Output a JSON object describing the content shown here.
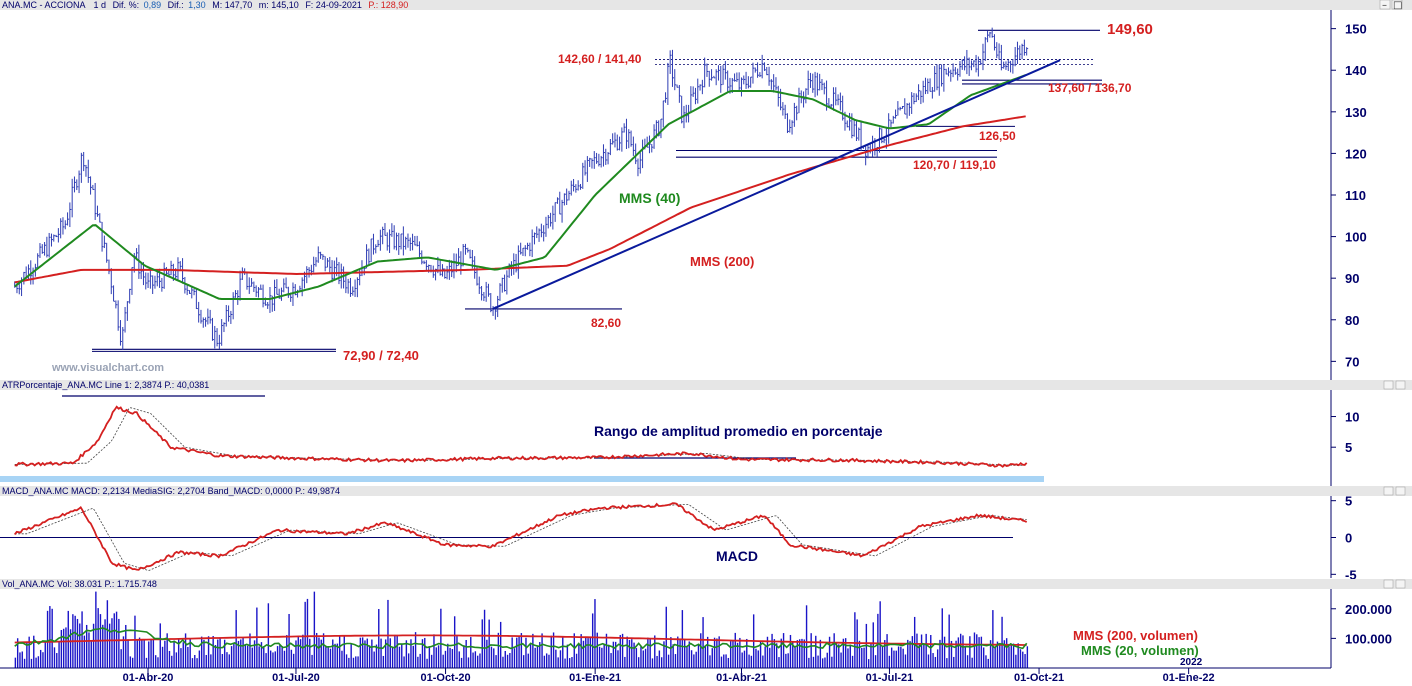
{
  "header": {
    "ticker": "ANA.MC - ACCIONA",
    "period": "1 d",
    "dif_pct_label": "Dif. %:",
    "dif_pct": "0,89",
    "dif_label": "Dif.:",
    "dif": "1,30",
    "max": "M: 147,70",
    "min": "m: 145,10",
    "date": "F: 24-09-2021",
    "price": "P.: 128,90"
  },
  "panels": {
    "atr_header": "ATRPorcentaje_ANA.MC  Line 1: 2,3874  P.: 40,0381",
    "macd_header": "MACD_ANA.MC  MACD: 2,2134  MediaSIG: 2,2704  Band_MACD: 0,0000  P.: 49,9874",
    "vol_header": "Vol_ANA.MC  Vol: 38.031  P.: 1.715.748"
  },
  "annotations": {
    "level_149": "149,60",
    "level_142": "142,60 / 141,40",
    "level_137": "137,60 / 136,70",
    "level_126": "126,50",
    "level_120": "120,70 / 119,10",
    "level_82": "82,60",
    "level_72": "72,90 / 72,40",
    "mms40": "MMS (40)",
    "mms200": "MMS (200)",
    "atr_title": "Rango de amplitud promedio en porcentaje",
    "macd_title": "MACD",
    "vol_mms200": "MMS (200, volumen)",
    "vol_mms20": "MMS (20, volumen)",
    "watermark": "www.visualchart.com",
    "year_marker": "2022"
  },
  "window_buttons": [
    "–",
    "□",
    "×"
  ],
  "colors": {
    "bars": "#2d3cb3",
    "mms40": "#1f8a1f",
    "mms200": "#d42020",
    "trend": "#0a1a9c",
    "axis_text": "#00006a",
    "header_bg": "#e6e6e6",
    "atr_band": "#a8d4f5",
    "volume": "#1a14c8"
  },
  "chart_data": [
    {
      "type": "candlestick",
      "name": "price",
      "ylim": [
        66,
        154
      ],
      "yticks": [
        70,
        80,
        90,
        100,
        110,
        120,
        130,
        140,
        150
      ],
      "x_start": "2020-01-10",
      "x_end": "2021-09-24",
      "anchors": [
        [
          "2020-01-10",
          88
        ],
        [
          "2020-01-25",
          95
        ],
        [
          "2020-02-10",
          103
        ],
        [
          "2020-02-21",
          120
        ],
        [
          "2020-02-28",
          108
        ],
        [
          "2020-03-09",
          90
        ],
        [
          "2020-03-16",
          75
        ],
        [
          "2020-03-23",
          96
        ],
        [
          "2020-04-01",
          88
        ],
        [
          "2020-04-20",
          92
        ],
        [
          "2020-05-06",
          80
        ],
        [
          "2020-05-14",
          75
        ],
        [
          "2020-05-29",
          90
        ],
        [
          "2020-06-15",
          85
        ],
        [
          "2020-07-01",
          88
        ],
        [
          "2020-07-15",
          95
        ],
        [
          "2020-08-04",
          88
        ],
        [
          "2020-08-20",
          100
        ],
        [
          "2020-09-10",
          98
        ],
        [
          "2020-09-30",
          90
        ],
        [
          "2020-10-13",
          96
        ],
        [
          "2020-10-30",
          83
        ],
        [
          "2020-11-10",
          92
        ],
        [
          "2020-11-25",
          100
        ],
        [
          "2020-12-15",
          110
        ],
        [
          "2020-12-31",
          118
        ],
        [
          "2021-01-20",
          125
        ],
        [
          "2021-01-28",
          118
        ],
        [
          "2021-02-10",
          127
        ],
        [
          "2021-02-16",
          142
        ],
        [
          "2021-02-24",
          128
        ],
        [
          "2021-03-10",
          140
        ],
        [
          "2021-04-01",
          136
        ],
        [
          "2021-04-15",
          142
        ],
        [
          "2021-04-29",
          127
        ],
        [
          "2021-05-14",
          138
        ],
        [
          "2021-06-02",
          130
        ],
        [
          "2021-06-17",
          121
        ],
        [
          "2021-07-01",
          126
        ],
        [
          "2021-07-15",
          133
        ],
        [
          "2021-08-05",
          140
        ],
        [
          "2021-08-25",
          142
        ],
        [
          "2021-09-01",
          149.6
        ],
        [
          "2021-09-08",
          140
        ],
        [
          "2021-09-24",
          147
        ]
      ],
      "mms40_anchors": [
        [
          "2020-01-10",
          88
        ],
        [
          "2020-02-28",
          103
        ],
        [
          "2020-03-30",
          93
        ],
        [
          "2020-05-15",
          85
        ],
        [
          "2020-06-15",
          85
        ],
        [
          "2020-07-15",
          88
        ],
        [
          "2020-08-20",
          94
        ],
        [
          "2020-09-20",
          95
        ],
        [
          "2020-11-01",
          92
        ],
        [
          "2020-12-01",
          95
        ],
        [
          "2021-01-01",
          110
        ],
        [
          "2021-02-15",
          127
        ],
        [
          "2021-03-25",
          135
        ],
        [
          "2021-04-20",
          135
        ],
        [
          "2021-05-15",
          133
        ],
        [
          "2021-06-10",
          128
        ],
        [
          "2021-07-01",
          126
        ],
        [
          "2021-07-25",
          127
        ],
        [
          "2021-08-20",
          134
        ],
        [
          "2021-09-24",
          139
        ]
      ],
      "mms200_anchors": [
        [
          "2020-01-10",
          89
        ],
        [
          "2020-02-20",
          92
        ],
        [
          "2020-04-15",
          92
        ],
        [
          "2020-07-01",
          91
        ],
        [
          "2020-10-15",
          92
        ],
        [
          "2020-12-15",
          93
        ],
        [
          "2021-01-10",
          97
        ],
        [
          "2021-03-01",
          107
        ],
        [
          "2021-05-01",
          115
        ],
        [
          "2021-07-01",
          122
        ],
        [
          "2021-08-15",
          126.5
        ],
        [
          "2021-09-24",
          129
        ]
      ],
      "trendline": [
        [
          "2020-10-30",
          82.6
        ],
        [
          "2021-09-24",
          139
        ]
      ],
      "levels": {
        "resistance_top": 149.6,
        "resistance_mid": [
          142.6,
          141.4
        ],
        "support_upper": [
          137.6,
          136.7
        ],
        "support_ma": 126.5,
        "support_mid": [
          120.7,
          119.1
        ],
        "low_oct": 82.6,
        "low_mar": [
          72.9,
          72.4
        ]
      }
    },
    {
      "type": "line",
      "name": "ATR percentage",
      "ylim": [
        -1,
        14
      ],
      "yticks": [
        5,
        10
      ],
      "anchors": [
        [
          "2020-01-10",
          2.2
        ],
        [
          "2020-02-15",
          2.4
        ],
        [
          "2020-03-01",
          6
        ],
        [
          "2020-03-12",
          11.5
        ],
        [
          "2020-03-25",
          10.5
        ],
        [
          "2020-04-15",
          5
        ],
        [
          "2020-05-15",
          3.6
        ],
        [
          "2020-07-01",
          3.2
        ],
        [
          "2020-09-01",
          2.8
        ],
        [
          "2020-11-01",
          3.2
        ],
        [
          "2021-01-01",
          3.3
        ],
        [
          "2021-03-01",
          4
        ],
        [
          "2021-04-01",
          3
        ],
        [
          "2021-06-01",
          2.9
        ],
        [
          "2021-08-01",
          2.5
        ],
        [
          "2021-09-10",
          2.0
        ],
        [
          "2021-09-24",
          2.39
        ]
      ]
    },
    {
      "type": "line",
      "name": "MACD",
      "ylim": [
        -5.5,
        5.5
      ],
      "yticks": [
        5,
        0,
        -5
      ],
      "anchors": [
        [
          "2020-01-10",
          0.5
        ],
        [
          "2020-02-20",
          4
        ],
        [
          "2020-03-10",
          -3.5
        ],
        [
          "2020-03-25",
          -4.5
        ],
        [
          "2020-04-20",
          -2
        ],
        [
          "2020-05-15",
          -2.5
        ],
        [
          "2020-06-20",
          1
        ],
        [
          "2020-08-01",
          0.5
        ],
        [
          "2020-08-25",
          2
        ],
        [
          "2020-10-01",
          -1
        ],
        [
          "2020-10-30",
          -1.2
        ],
        [
          "2020-12-10",
          3
        ],
        [
          "2021-01-05",
          4
        ],
        [
          "2021-02-20",
          4.5
        ],
        [
          "2021-03-15",
          1
        ],
        [
          "2021-04-15",
          3
        ],
        [
          "2021-05-01",
          -1
        ],
        [
          "2021-06-15",
          -2.5
        ],
        [
          "2021-07-20",
          1.5
        ],
        [
          "2021-08-25",
          3
        ],
        [
          "2021-09-24",
          2.21
        ]
      ]
    },
    {
      "type": "bar",
      "name": "Volume",
      "ylim": [
        0,
        260000
      ],
      "yticks": [
        100000,
        200000
      ],
      "yticklabels": [
        "100.000",
        "200.000"
      ],
      "mms200_vol": 90000,
      "mms20_vol": 75000
    }
  ],
  "x_axis": {
    "ticks": [
      {
        "date": "2020-04-01",
        "label": "01-Abr-20"
      },
      {
        "date": "2020-07-01",
        "label": "01-Jul-20"
      },
      {
        "date": "2020-10-01",
        "label": "01-Oct-20"
      },
      {
        "date": "2021-01-01",
        "label": "01-Ene-21"
      },
      {
        "date": "2021-04-01",
        "label": "01-Abr-21"
      },
      {
        "date": "2021-07-01",
        "label": "01-Jul-21"
      },
      {
        "date": "2021-10-01",
        "label": "01-Oct-21"
      },
      {
        "date": "2022-01-01",
        "label": "01-Ene-22"
      }
    ]
  }
}
